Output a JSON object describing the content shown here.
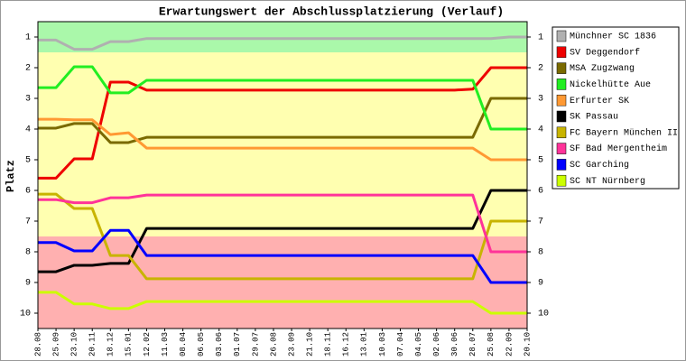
{
  "chart_data": {
    "type": "line",
    "title": "Erwartungswert der Abschlussplatzierung (Verlauf)",
    "y_label": "Platz",
    "categories": [
      "28.08",
      "25.09",
      "23.10",
      "20.11",
      "18.12",
      "15.01",
      "12.02",
      "11.03",
      "08.04",
      "06.05",
      "03.06",
      "01.07",
      "29.07",
      "26.08",
      "23.09",
      "21.10",
      "18.11",
      "16.12",
      "13.01",
      "10.03",
      "07.04",
      "04.05",
      "02.06",
      "30.06",
      "28.07",
      "25.08",
      "22.09",
      "20.10"
    ],
    "ylim": [
      0.5,
      10.5
    ],
    "y_inverted": true,
    "yticks": [
      1,
      2,
      3,
      4,
      5,
      6,
      7,
      8,
      9,
      10
    ],
    "bands": [
      {
        "from": 0.5,
        "to": 1.5,
        "color": "#aaf8aa"
      },
      {
        "from": 1.5,
        "to": 7.5,
        "color": "#ffffb0"
      },
      {
        "from": 7.5,
        "to": 10.5,
        "color": "#ffb0b0"
      }
    ],
    "legend": "right",
    "series": [
      {
        "name": "Münchner SC 1836",
        "color": "#b0b0b0",
        "values": [
          1.1,
          1.1,
          1.4,
          1.4,
          1.15,
          1.15,
          1.05,
          1.05,
          1.05,
          1.05,
          1.05,
          1.05,
          1.05,
          1.05,
          1.05,
          1.05,
          1.05,
          1.05,
          1.05,
          1.05,
          1.05,
          1.05,
          1.05,
          1.05,
          1.05,
          1.05,
          1.0,
          1.0
        ]
      },
      {
        "name": "SV Deggendorf",
        "color": "#ee0000",
        "values": [
          5.6,
          5.6,
          4.97,
          4.97,
          2.47,
          2.47,
          2.73,
          2.73,
          2.73,
          2.73,
          2.73,
          2.73,
          2.73,
          2.73,
          2.73,
          2.73,
          2.73,
          2.73,
          2.73,
          2.73,
          2.73,
          2.73,
          2.73,
          2.73,
          2.7,
          2.0,
          2.0,
          2.0
        ]
      },
      {
        "name": "MSA Zugzwang",
        "color": "#7a6a00",
        "values": [
          3.97,
          3.97,
          3.82,
          3.82,
          4.44,
          4.44,
          4.27,
          4.27,
          4.27,
          4.27,
          4.27,
          4.27,
          4.27,
          4.27,
          4.27,
          4.27,
          4.27,
          4.27,
          4.27,
          4.27,
          4.27,
          4.27,
          4.27,
          4.27,
          4.27,
          3.0,
          3.0,
          3.0
        ]
      },
      {
        "name": "Nickelhütte Aue",
        "color": "#22ee22",
        "values": [
          2.65,
          2.65,
          1.97,
          1.97,
          2.82,
          2.82,
          2.41,
          2.41,
          2.41,
          2.41,
          2.41,
          2.41,
          2.41,
          2.41,
          2.41,
          2.41,
          2.41,
          2.41,
          2.41,
          2.41,
          2.41,
          2.41,
          2.41,
          2.41,
          2.41,
          4.0,
          4.0,
          4.0
        ]
      },
      {
        "name": "Erfurter SK",
        "color": "#ff9933",
        "values": [
          3.68,
          3.68,
          3.7,
          3.7,
          4.18,
          4.12,
          4.62,
          4.62,
          4.62,
          4.62,
          4.62,
          4.62,
          4.62,
          4.62,
          4.62,
          4.62,
          4.62,
          4.62,
          4.62,
          4.62,
          4.62,
          4.62,
          4.62,
          4.62,
          4.62,
          5.0,
          5.0,
          5.0
        ]
      },
      {
        "name": "SK Passau",
        "color": "#000000",
        "values": [
          8.65,
          8.65,
          8.44,
          8.44,
          8.38,
          8.38,
          7.24,
          7.24,
          7.24,
          7.24,
          7.24,
          7.24,
          7.24,
          7.24,
          7.24,
          7.24,
          7.24,
          7.24,
          7.24,
          7.24,
          7.24,
          7.24,
          7.24,
          7.24,
          7.24,
          6.0,
          6.0,
          6.0
        ]
      },
      {
        "name": "FC Bayern München II",
        "color": "#c8b400",
        "values": [
          6.12,
          6.12,
          6.59,
          6.59,
          8.12,
          8.12,
          8.88,
          8.88,
          8.88,
          8.88,
          8.88,
          8.88,
          8.88,
          8.88,
          8.88,
          8.88,
          8.88,
          8.88,
          8.88,
          8.88,
          8.88,
          8.88,
          8.88,
          8.88,
          8.88,
          7.0,
          7.0,
          7.0
        ]
      },
      {
        "name": "SF Bad Mergentheim",
        "color": "#ff3399",
        "values": [
          6.3,
          6.3,
          6.4,
          6.4,
          6.24,
          6.24,
          6.15,
          6.15,
          6.15,
          6.15,
          6.15,
          6.15,
          6.15,
          6.15,
          6.15,
          6.15,
          6.15,
          6.15,
          6.15,
          6.15,
          6.15,
          6.15,
          6.15,
          6.15,
          6.15,
          8.0,
          8.0,
          8.0
        ]
      },
      {
        "name": "SC Garching",
        "color": "#0000ff",
        "values": [
          7.7,
          7.7,
          7.97,
          7.97,
          7.3,
          7.3,
          8.12,
          8.12,
          8.12,
          8.12,
          8.12,
          8.12,
          8.12,
          8.12,
          8.12,
          8.12,
          8.12,
          8.12,
          8.12,
          8.12,
          8.12,
          8.12,
          8.12,
          8.12,
          8.12,
          9.0,
          9.0,
          9.0
        ]
      },
      {
        "name": "SC NT Nürnberg",
        "color": "#ccff00",
        "values": [
          9.32,
          9.32,
          9.7,
          9.7,
          9.85,
          9.85,
          9.62,
          9.62,
          9.62,
          9.62,
          9.62,
          9.62,
          9.62,
          9.62,
          9.62,
          9.62,
          9.62,
          9.62,
          9.62,
          9.62,
          9.62,
          9.62,
          9.62,
          9.62,
          9.62,
          10.0,
          10.0,
          10.0
        ]
      }
    ]
  }
}
